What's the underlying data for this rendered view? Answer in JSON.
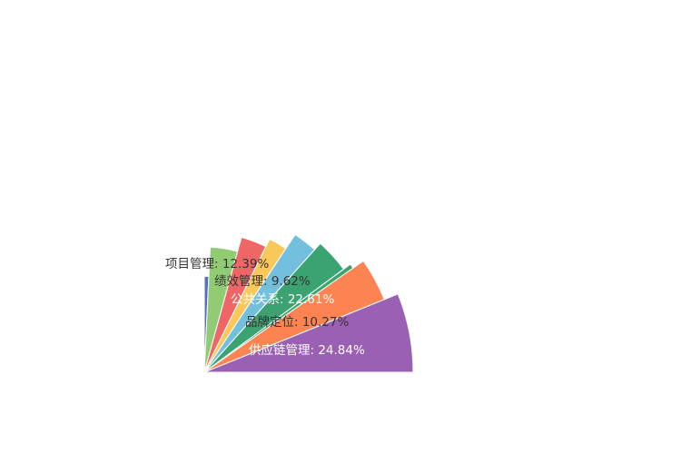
{
  "chart_data": {
    "type": "pie",
    "variant": "rose",
    "start_angle_deg": 90,
    "end_angle_deg": 0,
    "slices": [
      {
        "name": "项目管理",
        "value": 12.39,
        "percent_label": "12.39%",
        "color": "#5470c6",
        "label_color": "#333333",
        "radius_fraction": 0.46
      },
      {
        "name": "",
        "value": 0,
        "percent_label": "",
        "color": "#91cc75",
        "radius_fraction": 0.6
      },
      {
        "name": "",
        "value": 0,
        "percent_label": "",
        "color": "#ee6666",
        "radius_fraction": 0.67
      },
      {
        "name": "",
        "value": 0,
        "percent_label": "",
        "color": "#fac858",
        "radius_fraction": 0.71
      },
      {
        "name": "",
        "value": 0,
        "percent_label": "",
        "color": "#73c0de",
        "radius_fraction": 0.79
      },
      {
        "name": "绩效管理",
        "value": 9.62,
        "percent_label": "9.62%",
        "color": "#3ba272",
        "label_color": "#333333",
        "radius_fraction": 0.83
      },
      {
        "name": "公共关系",
        "value": 22.61,
        "percent_label": "22.61%",
        "color": "#3ba272",
        "label_color": "#ffffff",
        "radius_fraction": 0.87
      },
      {
        "name": "品牌定位",
        "value": 10.27,
        "percent_label": "10.27%",
        "color": "#fc8452",
        "label_color": "#333333",
        "radius_fraction": 0.93
      },
      {
        "name": "供应链管理",
        "value": 24.84,
        "percent_label": "24.84%",
        "color": "#9a60b4",
        "label_color": "#ffffff",
        "radius_fraction": 1.0
      }
    ]
  }
}
